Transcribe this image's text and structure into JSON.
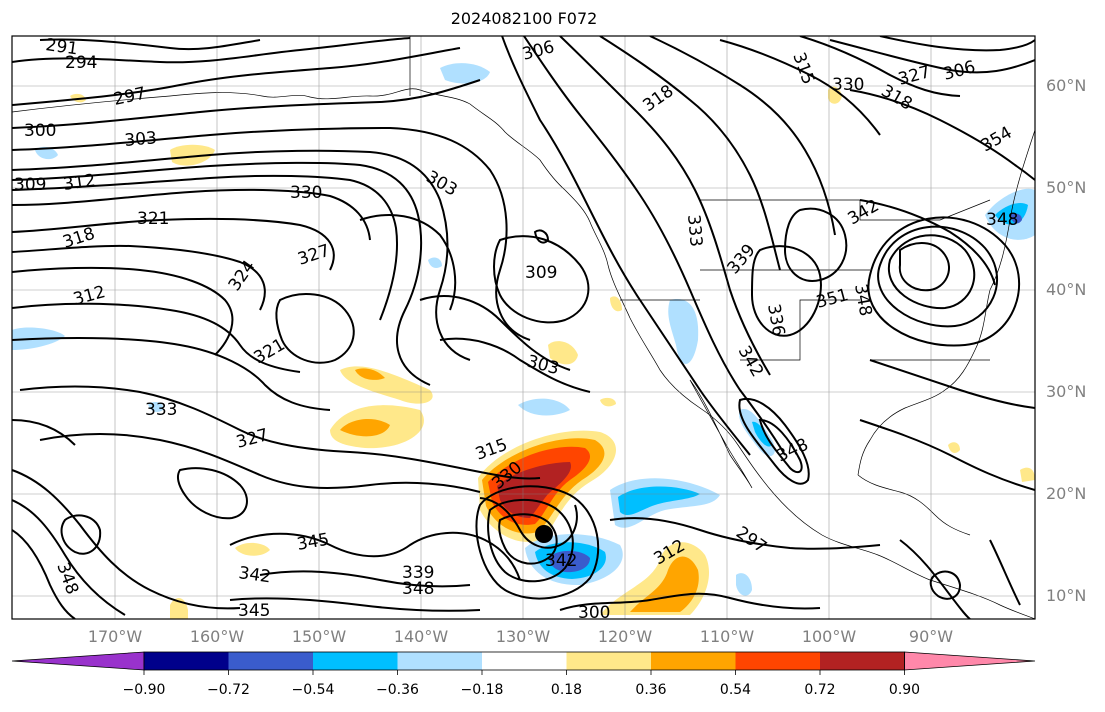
{
  "title": "2024082100 F072",
  "lat_labels": [
    "60°N",
    "50°N",
    "40°N",
    "30°N",
    "20°N",
    "10°N"
  ],
  "lon_labels": [
    "170°W",
    "160°W",
    "150°W",
    "140°W",
    "130°W",
    "120°W",
    "110°W",
    "100°W",
    "90°W"
  ],
  "contour_labels": [
    "291",
    "294",
    "297",
    "300",
    "303",
    "309",
    "312",
    "330",
    "321",
    "318",
    "327",
    "324",
    "306",
    "315",
    "318",
    "303",
    "309",
    "312",
    "321",
    "333",
    "339",
    "351",
    "348",
    "336",
    "342",
    "333",
    "327",
    "315",
    "330",
    "345",
    "342",
    "339",
    "348",
    "345",
    "348",
    "342",
    "312",
    "297",
    "300",
    "303",
    "306",
    "327",
    "318",
    "330",
    "354",
    "348",
    "342",
    "348"
  ],
  "colorbar": {
    "ticks": [
      "−0.90",
      "−0.72",
      "−0.54",
      "−0.36",
      "−0.18",
      "0.18",
      "0.36",
      "0.54",
      "0.72",
      "0.90"
    ],
    "colors": [
      "#9932cc",
      "#00008b",
      "#3a5ccc",
      "#00bfff",
      "#b0e0ff",
      "#ffffff",
      "#ffe88a",
      "#ffa500",
      "#ff4500",
      "#b22222",
      "#ff88aa"
    ]
  },
  "markers": [
    {
      "name": "storm-center",
      "lon": -128.3,
      "lat": 16.4
    }
  ]
}
